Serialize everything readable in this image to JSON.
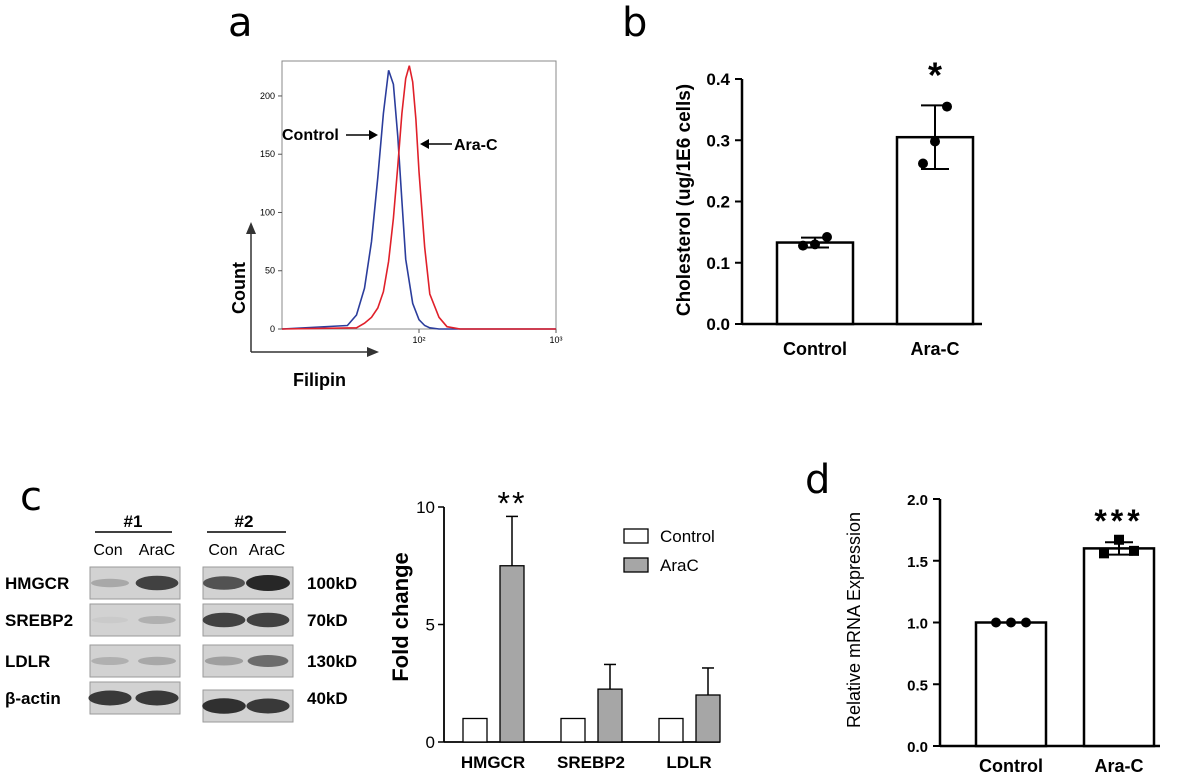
{
  "figure": {
    "panel_labels": [
      "a",
      "b",
      "c",
      "d"
    ]
  },
  "chart_data": [
    {
      "id": "a",
      "type": "line",
      "title": "",
      "xlabel": "Filipin",
      "ylabel": "Count",
      "x_scale": "log",
      "xlim": [
        10,
        1000
      ],
      "ylim": [
        0,
        230
      ],
      "x_tick_labels": [
        "10²",
        "10³"
      ],
      "x_tick_values": [
        100,
        1000
      ],
      "y_ticks": [
        0,
        50,
        100,
        150,
        200
      ],
      "series": [
        {
          "name": "Control",
          "color": "#2b3d9c",
          "x": [
            30,
            35,
            40,
            45,
            50,
            55,
            60,
            65,
            70,
            75,
            80,
            90,
            100,
            110,
            120,
            140,
            160
          ],
          "y": [
            3,
            12,
            35,
            75,
            130,
            185,
            222,
            210,
            165,
            110,
            60,
            22,
            8,
            3,
            1,
            0,
            0
          ]
        },
        {
          "name": "Ara-C",
          "color": "#e0202a",
          "x": [
            35,
            40,
            45,
            50,
            55,
            60,
            65,
            70,
            75,
            80,
            85,
            90,
            95,
            100,
            110,
            120,
            140,
            160,
            200
          ],
          "y": [
            1,
            5,
            10,
            18,
            32,
            58,
            95,
            140,
            185,
            215,
            226,
            212,
            180,
            135,
            70,
            30,
            10,
            2,
            0
          ]
        }
      ],
      "annotations": [
        "Control",
        "Ara-C"
      ]
    },
    {
      "id": "b",
      "type": "bar",
      "categories": [
        "Control",
        "Ara-C"
      ],
      "values": [
        0.133,
        0.305
      ],
      "errors": [
        0.008,
        0.052
      ],
      "points": [
        [
          0.128,
          0.142,
          0.13
        ],
        [
          0.262,
          0.355,
          0.298
        ]
      ],
      "significance": [
        "",
        "*"
      ],
      "ylabel": "Cholesterol (ug/1E6 cells)",
      "xlabel": "",
      "ylim": [
        0,
        0.4
      ],
      "yticks": [
        0.0,
        0.1,
        0.2,
        0.3,
        0.4
      ],
      "ytick_labels": [
        "0.0",
        "0.1",
        "0.2",
        "0.3",
        "0.4"
      ]
    },
    {
      "id": "c-bar",
      "type": "bar",
      "categories": [
        "HMGCR",
        "SREBP2",
        "LDLR"
      ],
      "series": [
        {
          "name": "Control",
          "color": "#ffffff",
          "values": [
            1,
            1,
            1
          ],
          "errors": [
            0,
            0,
            0
          ]
        },
        {
          "name": "AraC",
          "color": "#a6a6a6",
          "values": [
            7.5,
            2.25,
            2.0
          ],
          "errors": [
            2.1,
            1.05,
            1.15
          ]
        }
      ],
      "significance": [
        "**",
        "",
        ""
      ],
      "ylabel": "Fold change",
      "xlabel": "",
      "ylim": [
        0,
        10
      ],
      "yticks": [
        0,
        5,
        10
      ],
      "legend": "top-right"
    },
    {
      "id": "d",
      "type": "bar",
      "categories": [
        "Control",
        "Ara-C"
      ],
      "values": [
        1.0,
        1.6
      ],
      "errors": [
        0.0,
        0.05
      ],
      "points": [
        [
          1.0,
          1.0,
          1.0
        ],
        [
          1.56,
          1.67,
          1.58
        ]
      ],
      "significance": [
        "",
        "***"
      ],
      "ylabel": "Relative mRNA Expression",
      "xlabel": "",
      "ylim": [
        0,
        2.0
      ],
      "yticks": [
        0.0,
        0.5,
        1.0,
        1.5,
        2.0
      ],
      "ytick_labels": [
        "0.0",
        "0.5",
        "1.0",
        "1.5",
        "2.0"
      ]
    }
  ],
  "blot": {
    "groups": [
      {
        "label": "#1",
        "lanes": [
          "Con",
          "AraC"
        ]
      },
      {
        "label": "#2",
        "lanes": [
          "Con",
          "AraC"
        ]
      }
    ],
    "proteins": [
      "HMGCR",
      "SREBP2",
      "LDLR",
      "β-actin"
    ],
    "sizes": [
      "100kD",
      "70kD",
      "130kD",
      "40kD"
    ],
    "band_intensity": {
      "group1": [
        [
          0.25,
          0.85
        ],
        [
          0.05,
          0.2
        ],
        [
          0.2,
          0.25
        ],
        [
          0.9,
          0.9
        ]
      ],
      "group2": [
        [
          0.75,
          1.0
        ],
        [
          0.85,
          0.85
        ],
        [
          0.3,
          0.6
        ],
        [
          0.95,
          0.9
        ]
      ]
    }
  }
}
